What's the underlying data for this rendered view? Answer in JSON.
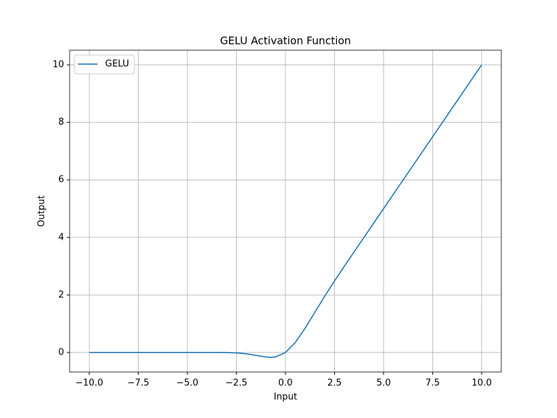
{
  "chart_data": {
    "type": "line",
    "title": "GELU Activation Function",
    "xlabel": "Input",
    "ylabel": "Output",
    "x": [
      -10,
      -9.5,
      -9,
      -8.5,
      -8,
      -7.5,
      -7,
      -6.5,
      -6,
      -5.5,
      -5,
      -4.5,
      -4,
      -3.5,
      -3,
      -2.5,
      -2,
      -1.5,
      -1,
      -0.75,
      -0.5,
      0,
      0.5,
      1,
      1.5,
      2,
      2.5,
      3,
      3.5,
      4,
      4.5,
      5,
      5.5,
      6,
      6.5,
      7,
      7.5,
      8,
      8.5,
      9,
      9.5,
      10
    ],
    "series": [
      {
        "name": "GELU",
        "color": "#1f77b4",
        "values": [
          0,
          0,
          0,
          0,
          0,
          0,
          0,
          0,
          0,
          0,
          0,
          0,
          -0.0001,
          -0.0008,
          -0.004,
          -0.0155,
          -0.0455,
          -0.1002,
          -0.1587,
          -0.17,
          -0.1543,
          0,
          0.3457,
          0.8413,
          1.3998,
          1.9545,
          2.4845,
          2.996,
          3.4992,
          3.9999,
          4.5,
          5,
          5.5,
          6,
          6.5,
          7,
          7.5,
          8,
          8.5,
          9,
          9.5,
          10
        ]
      }
    ],
    "xlim": [
      -11,
      11
    ],
    "ylim": [
      -0.68,
      10.51
    ],
    "xticks": [
      {
        "value": -10,
        "label": "−10.0"
      },
      {
        "value": -7.5,
        "label": "−7.5"
      },
      {
        "value": -5,
        "label": "−5.0"
      },
      {
        "value": -2.5,
        "label": "−2.5"
      },
      {
        "value": 0,
        "label": "0.0"
      },
      {
        "value": 2.5,
        "label": "2.5"
      },
      {
        "value": 5,
        "label": "5.0"
      },
      {
        "value": 7.5,
        "label": "7.5"
      },
      {
        "value": 10,
        "label": "10.0"
      }
    ],
    "yticks": [
      0,
      2,
      4,
      6,
      8,
      10
    ],
    "grid": true,
    "legend": "upper-left"
  }
}
